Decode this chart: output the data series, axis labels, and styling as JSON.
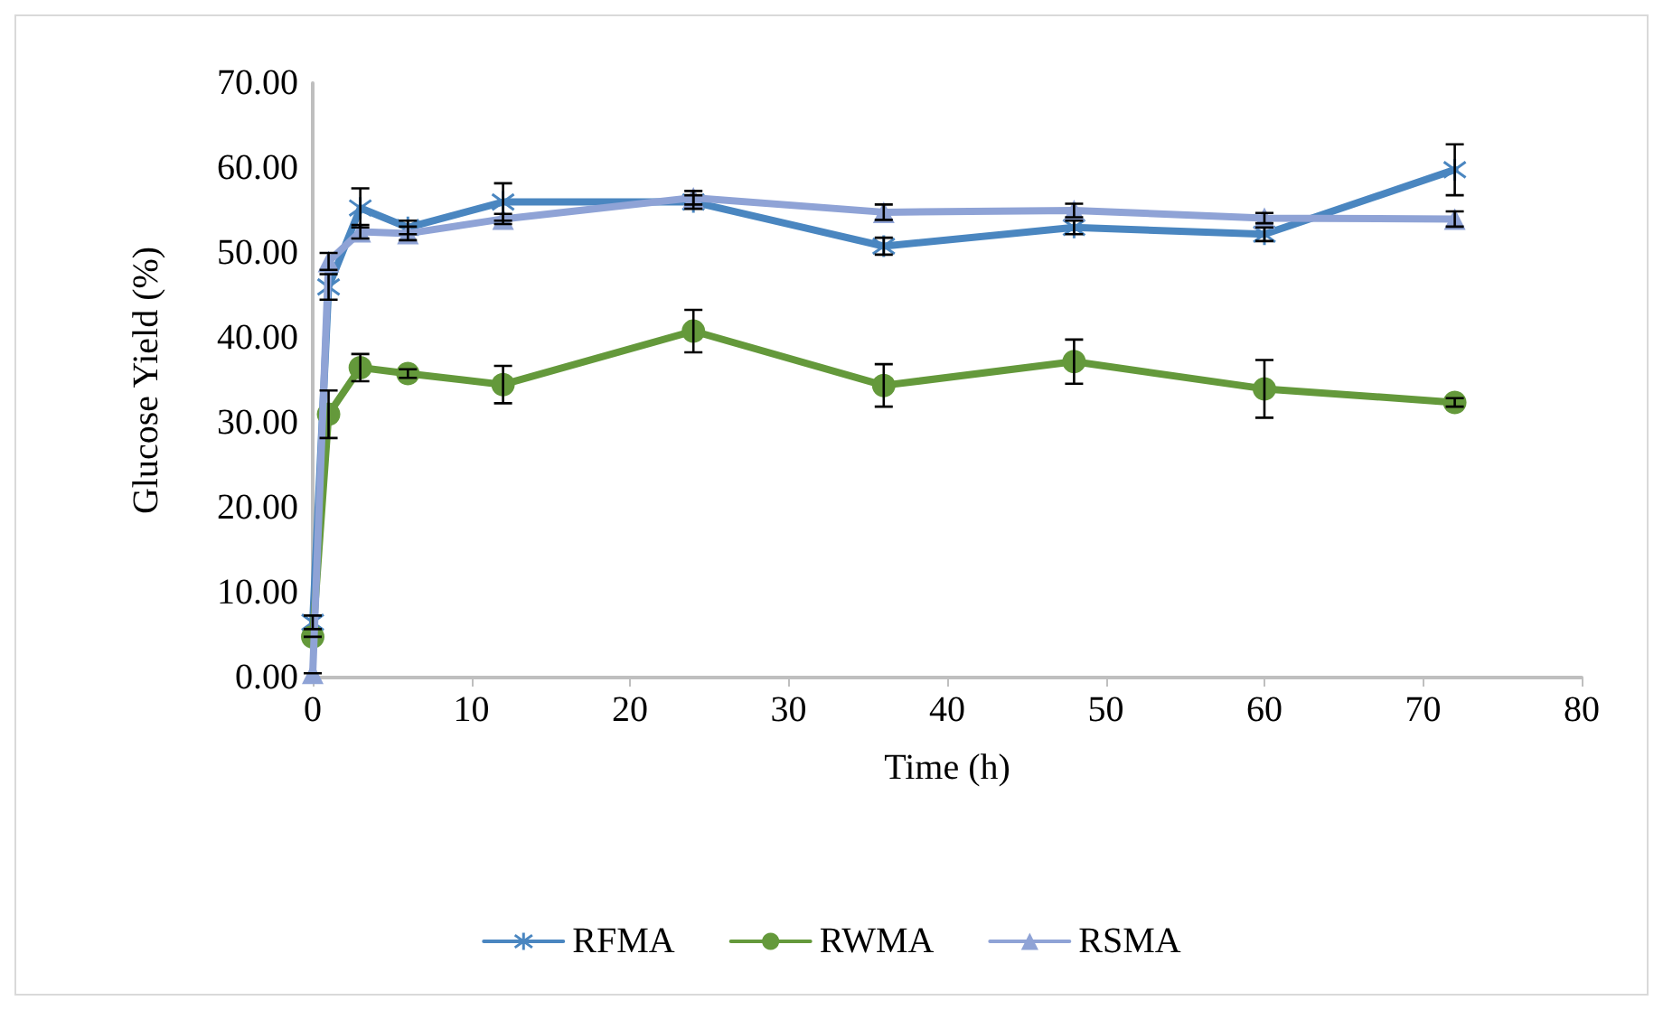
{
  "chart_data": {
    "type": "line",
    "xlabel": "Time (h)",
    "ylabel": "Glucose Yield (%)",
    "x": [
      0,
      1,
      3,
      6,
      12,
      24,
      36,
      48,
      60,
      72
    ],
    "xlim": [
      0,
      80
    ],
    "xticks": [
      0,
      10,
      20,
      30,
      40,
      50,
      60,
      70,
      80
    ],
    "ylim": [
      0,
      70
    ],
    "yticks": [
      {
        "value": 0,
        "label": "0.00"
      },
      {
        "value": 10,
        "label": "10.00"
      },
      {
        "value": 20,
        "label": "20.00"
      },
      {
        "value": 30,
        "label": "30.00"
      },
      {
        "value": 40,
        "label": "40.00"
      },
      {
        "value": 50,
        "label": "50.00"
      },
      {
        "value": 60,
        "label": "60.00"
      },
      {
        "value": 70,
        "label": "70.00"
      }
    ],
    "grid": false,
    "legend": "bottom",
    "series": [
      {
        "name": "RFMA",
        "color": "#4a86c0",
        "marker": "cross",
        "values": [
          6.5,
          46,
          55.3,
          53,
          56,
          56,
          50.8,
          53,
          52.2,
          59.8
        ],
        "errors": [
          0.8,
          1.5,
          2.3,
          0.8,
          2.2,
          0.8,
          1,
          0.8,
          0.8,
          3
        ]
      },
      {
        "name": "RWMA",
        "color": "#64993b",
        "marker": "circle",
        "values": [
          4.8,
          31,
          36.5,
          35.8,
          34.5,
          40.8,
          34.4,
          37.2,
          34,
          32.4
        ],
        "errors": [
          null,
          2.8,
          1.6,
          0.5,
          2.2,
          2.5,
          2.5,
          2.6,
          3.4,
          0.5
        ]
      },
      {
        "name": "RSMA",
        "color": "#8fa3d6",
        "marker": "triangle",
        "values": [
          0.5,
          49,
          52.5,
          52.3,
          54,
          56.5,
          54.8,
          55,
          54.1,
          54
        ],
        "errors": [
          null,
          1,
          0.8,
          0.8,
          0.6,
          0.8,
          0.9,
          0.8,
          0.6,
          0.9
        ]
      }
    ]
  }
}
